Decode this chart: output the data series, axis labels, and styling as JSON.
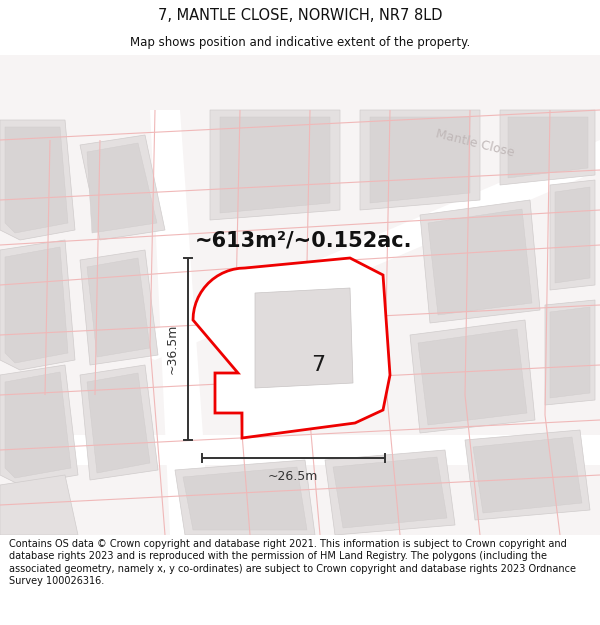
{
  "title": "7, MANTLE CLOSE, NORWICH, NR7 8LD",
  "subtitle": "Map shows position and indicative extent of the property.",
  "area_text": "~613m²/~0.152ac.",
  "dim_width": "~26.5m",
  "dim_height": "~36.5m",
  "property_number": "7",
  "footer": "Contains OS data © Crown copyright and database right 2021. This information is subject to Crown copyright and database rights 2023 and is reproduced with the permission of HM Land Registry. The polygons (including the associated geometry, namely x, y co-ordinates) are subject to Crown copyright and database rights 2023 Ordnance Survey 100026316.",
  "bg_color": "#f7f4f4",
  "block_fill": "#e4e0e0",
  "block_edge": "#d0cccc",
  "building_fill": "#d8d4d4",
  "road_fill": "#ffffff",
  "prop_fill": "#ffffff",
  "prop_edge": "#ee0000",
  "cadline_color": "#f0b8b8",
  "road_label_color": "#c0b8b8",
  "dim_color": "#333333",
  "title_fontsize": 10.5,
  "subtitle_fontsize": 8.5,
  "footer_fontsize": 7.0
}
